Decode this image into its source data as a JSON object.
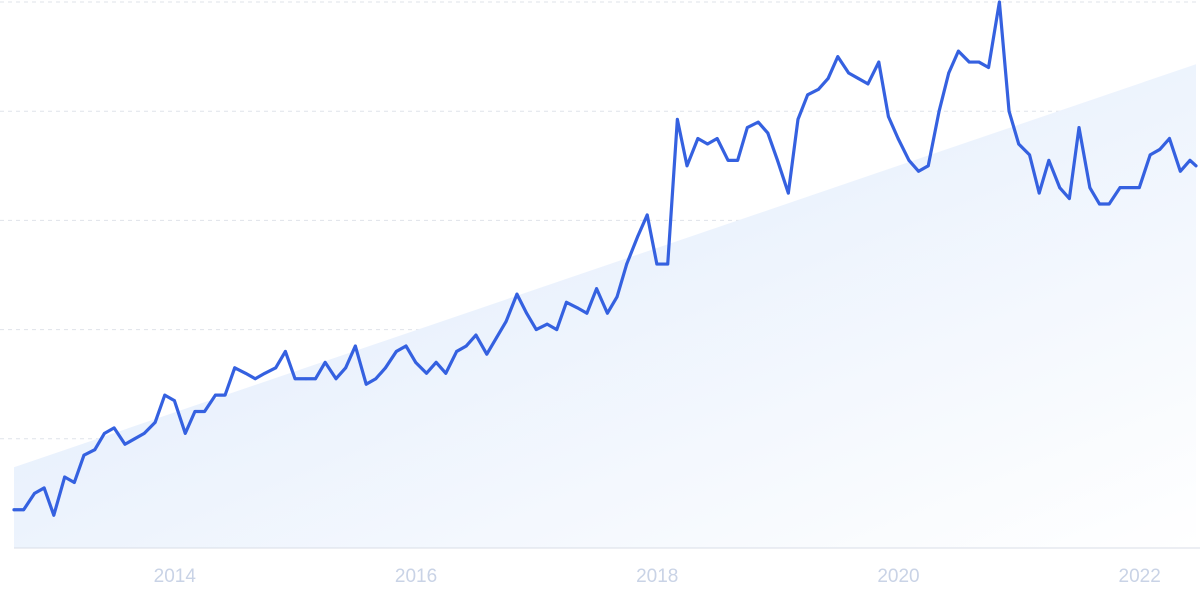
{
  "chart_data": {
    "type": "line",
    "title": "",
    "xlabel": "",
    "ylabel": "",
    "x_ticks": [
      "2014",
      "2016",
      "2018",
      "2020",
      "2022"
    ],
    "x_tick_years": [
      2014,
      2016,
      2018,
      2020,
      2022
    ],
    "xlim": [
      2012.7,
      2022.5
    ],
    "ylim": [
      0,
      100
    ],
    "grid": true,
    "y_gridlines": [
      20,
      40,
      60,
      80,
      100
    ],
    "y_tick_labels_visible": false,
    "legend": "none",
    "colors": {
      "line": "#3561e0",
      "trend_fill_top": "#dbe8fb",
      "trend_fill_bottom": "#ffffff",
      "grid": "#dfe3ea",
      "tick_label": "#c9d3e6"
    },
    "trend": {
      "type": "area",
      "start": {
        "x": 2012.7,
        "y": 14.8
      },
      "end": {
        "x": 2022.5,
        "y": 88.6
      }
    },
    "series": [
      {
        "points": [
          [
            2012.7,
            7.0
          ],
          [
            2012.78,
            7.0
          ],
          [
            2012.87,
            10.0
          ],
          [
            2012.95,
            11.0
          ],
          [
            2013.03,
            6.0
          ],
          [
            2013.12,
            13.0
          ],
          [
            2013.2,
            12.0
          ],
          [
            2013.28,
            17.0
          ],
          [
            2013.37,
            18.0
          ],
          [
            2013.45,
            21.0
          ],
          [
            2013.53,
            22.0
          ],
          [
            2013.62,
            19.0
          ],
          [
            2013.7,
            20.0
          ],
          [
            2013.78,
            21.0
          ],
          [
            2013.87,
            23.0
          ],
          [
            2013.95,
            28.0
          ],
          [
            2014.03,
            27.0
          ],
          [
            2014.12,
            21.0
          ],
          [
            2014.2,
            25.0
          ],
          [
            2014.28,
            25.0
          ],
          [
            2014.37,
            28.0
          ],
          [
            2014.45,
            28.0
          ],
          [
            2014.53,
            33.0
          ],
          [
            2014.62,
            32.0
          ],
          [
            2014.7,
            31.0
          ],
          [
            2014.78,
            32.0
          ],
          [
            2014.87,
            33.0
          ],
          [
            2014.95,
            36.0
          ],
          [
            2015.03,
            31.0
          ],
          [
            2015.12,
            31.0
          ],
          [
            2015.2,
            31.0
          ],
          [
            2015.28,
            34.0
          ],
          [
            2015.37,
            31.0
          ],
          [
            2015.45,
            33.0
          ],
          [
            2015.53,
            37.0
          ],
          [
            2015.62,
            30.0
          ],
          [
            2015.7,
            31.0
          ],
          [
            2015.78,
            33.0
          ],
          [
            2015.87,
            36.0
          ],
          [
            2015.95,
            37.0
          ],
          [
            2016.03,
            34.0
          ],
          [
            2016.12,
            32.0
          ],
          [
            2016.2,
            34.0
          ],
          [
            2016.28,
            32.0
          ],
          [
            2016.37,
            36.0
          ],
          [
            2016.45,
            37.0
          ],
          [
            2016.53,
            39.0
          ],
          [
            2016.62,
            35.5
          ],
          [
            2016.7,
            38.5
          ],
          [
            2016.78,
            41.5
          ],
          [
            2016.87,
            46.5
          ],
          [
            2016.95,
            43.0
          ],
          [
            2017.03,
            40.0
          ],
          [
            2017.12,
            41.0
          ],
          [
            2017.2,
            40.0
          ],
          [
            2017.28,
            45.0
          ],
          [
            2017.37,
            44.0
          ],
          [
            2017.45,
            43.0
          ],
          [
            2017.53,
            47.5
          ],
          [
            2017.62,
            43.0
          ],
          [
            2017.7,
            46.0
          ],
          [
            2017.78,
            52.0
          ],
          [
            2017.87,
            57.0
          ],
          [
            2017.95,
            61.0
          ],
          [
            2018.03,
            52.0
          ],
          [
            2018.12,
            52.0
          ],
          [
            2018.2,
            78.5
          ],
          [
            2018.28,
            70.0
          ],
          [
            2018.37,
            75.0
          ],
          [
            2018.45,
            74.0
          ],
          [
            2018.53,
            75.0
          ],
          [
            2018.62,
            71.0
          ],
          [
            2018.7,
            71.0
          ],
          [
            2018.78,
            77.0
          ],
          [
            2018.87,
            78.0
          ],
          [
            2018.95,
            76.0
          ],
          [
            2019.03,
            71.0
          ],
          [
            2019.12,
            65.0
          ],
          [
            2019.2,
            78.5
          ],
          [
            2019.28,
            83.0
          ],
          [
            2019.37,
            84.0
          ],
          [
            2019.45,
            86.0
          ],
          [
            2019.53,
            90.0
          ],
          [
            2019.62,
            87.0
          ],
          [
            2019.7,
            86.0
          ],
          [
            2019.78,
            85.0
          ],
          [
            2019.87,
            89.0
          ],
          [
            2019.95,
            79.0
          ],
          [
            2020.03,
            75.0
          ],
          [
            2020.12,
            71.0
          ],
          [
            2020.2,
            69.0
          ],
          [
            2020.28,
            70.0
          ],
          [
            2020.37,
            80.0
          ],
          [
            2020.45,
            87.0
          ],
          [
            2020.53,
            91.0
          ],
          [
            2020.62,
            89.0
          ],
          [
            2020.7,
            89.0
          ],
          [
            2020.78,
            88.0
          ],
          [
            2020.87,
            100.0
          ],
          [
            2020.95,
            80.0
          ],
          [
            2021.03,
            74.0
          ],
          [
            2021.12,
            72.0
          ],
          [
            2021.2,
            65.0
          ],
          [
            2021.28,
            71.0
          ],
          [
            2021.37,
            66.0
          ],
          [
            2021.45,
            64.0
          ],
          [
            2021.53,
            77.0
          ],
          [
            2021.62,
            66.0
          ],
          [
            2021.7,
            63.0
          ],
          [
            2021.78,
            63.0
          ],
          [
            2021.87,
            66.0
          ],
          [
            2021.95,
            66.0
          ],
          [
            2022.03,
            66.0
          ],
          [
            2022.12,
            72.0
          ],
          [
            2022.2,
            73.0
          ],
          [
            2022.28,
            75.0
          ],
          [
            2022.37,
            69.0
          ],
          [
            2022.45,
            71.0
          ],
          [
            2022.5,
            70.0
          ]
        ]
      }
    ]
  }
}
